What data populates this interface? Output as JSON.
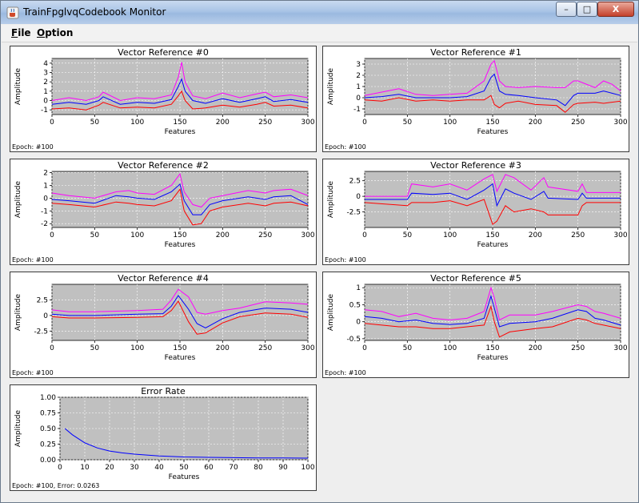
{
  "window": {
    "title": "TrainFpglvqCodebook Monitor",
    "minimize_glyph": "–",
    "maximize_glyph": "□",
    "close_glyph": "X"
  },
  "menu": {
    "items": [
      {
        "label": "File",
        "mnemonic": "F",
        "rest": "ile"
      },
      {
        "label": "Option",
        "mnemonic": "O",
        "rest": "ption"
      }
    ]
  },
  "colors": {
    "plot_bg": "#c0c0c0",
    "upper": "#ff00ff",
    "center": "#0000ff",
    "lower": "#ff0000",
    "grid": "#ffffff"
  },
  "chart_data": [
    {
      "type": "line",
      "title": "Vector Reference #0",
      "xlabel": "Features",
      "ylabel": "Amplitude",
      "footer": "Epoch: #100",
      "xlim": [
        0,
        300
      ],
      "ylim": [
        -1.5,
        4.5
      ],
      "xticks": [
        0,
        50,
        100,
        150,
        200,
        250,
        300
      ],
      "yticks": [
        -1,
        0,
        1,
        2,
        3,
        4
      ],
      "series": [
        {
          "color": "upper",
          "x": [
            0,
            20,
            40,
            55,
            60,
            80,
            100,
            120,
            140,
            148,
            152,
            156,
            165,
            180,
            200,
            220,
            240,
            250,
            260,
            280,
            300
          ],
          "y": [
            0.0,
            0.3,
            0.0,
            0.4,
            0.9,
            0.0,
            0.3,
            0.2,
            0.6,
            2.5,
            4.1,
            2.0,
            0.5,
            0.2,
            0.8,
            0.3,
            0.7,
            0.9,
            0.4,
            0.6,
            0.3
          ]
        },
        {
          "color": "center",
          "x": [
            0,
            20,
            40,
            55,
            60,
            80,
            100,
            120,
            140,
            148,
            152,
            156,
            165,
            180,
            200,
            220,
            240,
            250,
            260,
            280,
            300
          ],
          "y": [
            -0.4,
            -0.2,
            -0.4,
            0.0,
            0.4,
            -0.4,
            -0.2,
            -0.3,
            0.1,
            1.5,
            2.3,
            1.0,
            0.0,
            -0.3,
            0.2,
            -0.2,
            0.2,
            0.4,
            -0.1,
            0.1,
            -0.2
          ]
        },
        {
          "color": "lower",
          "x": [
            0,
            20,
            40,
            55,
            60,
            80,
            100,
            120,
            140,
            148,
            152,
            156,
            165,
            180,
            200,
            220,
            240,
            250,
            260,
            280,
            300
          ],
          "y": [
            -0.9,
            -0.8,
            -1.0,
            -0.5,
            -0.2,
            -0.8,
            -0.7,
            -0.8,
            -0.4,
            0.5,
            1.0,
            0.0,
            -0.9,
            -0.8,
            -0.5,
            -0.7,
            -0.4,
            -0.2,
            -0.6,
            -0.5,
            -0.8
          ]
        }
      ]
    },
    {
      "type": "line",
      "title": "Vector Reference #1",
      "xlabel": "Features",
      "ylabel": "Amplitude",
      "footer": "Epoch: #100",
      "xlim": [
        0,
        300
      ],
      "ylim": [
        -1.5,
        3.5
      ],
      "xticks": [
        0,
        50,
        100,
        150,
        200,
        250,
        300
      ],
      "yticks": [
        -1,
        0,
        1,
        2,
        3
      ],
      "series": [
        {
          "color": "upper",
          "x": [
            0,
            20,
            40,
            60,
            80,
            100,
            120,
            140,
            148,
            152,
            158,
            165,
            180,
            200,
            225,
            235,
            245,
            250,
            270,
            280,
            290,
            300
          ],
          "y": [
            0.2,
            0.5,
            0.8,
            0.3,
            0.2,
            0.3,
            0.4,
            1.5,
            3.0,
            3.3,
            1.5,
            1.0,
            0.9,
            1.0,
            0.9,
            0.9,
            1.5,
            1.5,
            0.9,
            1.5,
            1.2,
            0.6
          ]
        },
        {
          "color": "center",
          "x": [
            0,
            20,
            40,
            60,
            80,
            100,
            120,
            140,
            148,
            152,
            158,
            165,
            180,
            200,
            225,
            235,
            245,
            250,
            270,
            280,
            290,
            300
          ],
          "y": [
            0.0,
            0.1,
            0.3,
            0.0,
            0.0,
            0.0,
            0.1,
            0.6,
            1.8,
            2.1,
            0.6,
            0.3,
            0.2,
            0.0,
            -0.2,
            -0.7,
            0.2,
            0.4,
            0.4,
            0.6,
            0.4,
            0.2
          ]
        },
        {
          "color": "lower",
          "x": [
            0,
            20,
            40,
            60,
            80,
            100,
            120,
            140,
            148,
            152,
            158,
            165,
            180,
            200,
            225,
            235,
            245,
            250,
            270,
            280,
            290,
            300
          ],
          "y": [
            -0.2,
            -0.3,
            0.0,
            -0.3,
            -0.2,
            -0.3,
            -0.2,
            -0.2,
            0.2,
            -0.6,
            -0.9,
            -0.5,
            -0.3,
            -0.6,
            -0.7,
            -1.3,
            -0.6,
            -0.5,
            -0.4,
            -0.5,
            -0.4,
            -0.3
          ]
        }
      ]
    },
    {
      "type": "line",
      "title": "Vector Reference #2",
      "xlabel": "Features",
      "ylabel": "Amplitude",
      "footer": "Epoch: #100",
      "xlim": [
        0,
        300
      ],
      "ylim": [
        -2.3,
        2.1
      ],
      "xticks": [
        0,
        50,
        100,
        150,
        200,
        250,
        300
      ],
      "yticks": [
        -2,
        -1,
        0,
        1,
        2
      ],
      "series": [
        {
          "color": "upper",
          "x": [
            0,
            20,
            50,
            75,
            90,
            100,
            120,
            140,
            150,
            155,
            165,
            175,
            185,
            200,
            230,
            250,
            260,
            280,
            300
          ],
          "y": [
            0.4,
            0.2,
            0.0,
            0.5,
            0.6,
            0.4,
            0.3,
            1.0,
            1.9,
            0.5,
            -0.5,
            -0.7,
            0.0,
            0.2,
            0.6,
            0.4,
            0.6,
            0.7,
            0.2
          ]
        },
        {
          "color": "center",
          "x": [
            0,
            20,
            50,
            75,
            90,
            100,
            120,
            140,
            150,
            155,
            165,
            175,
            185,
            200,
            230,
            250,
            260,
            280,
            300
          ],
          "y": [
            -0.1,
            -0.2,
            -0.4,
            0.2,
            0.1,
            0.0,
            -0.1,
            0.5,
            1.1,
            -0.2,
            -1.3,
            -1.3,
            -0.5,
            -0.2,
            0.1,
            -0.1,
            0.1,
            0.2,
            -0.5
          ]
        },
        {
          "color": "lower",
          "x": [
            0,
            20,
            50,
            75,
            90,
            100,
            120,
            140,
            150,
            155,
            165,
            175,
            185,
            200,
            230,
            250,
            260,
            280,
            300
          ],
          "y": [
            -0.4,
            -0.5,
            -0.7,
            -0.3,
            -0.4,
            -0.5,
            -0.6,
            -0.2,
            0.7,
            -1.0,
            -2.1,
            -2.0,
            -1.0,
            -0.7,
            -0.4,
            -0.6,
            -0.4,
            -0.3,
            -0.6
          ]
        }
      ]
    },
    {
      "type": "line",
      "title": "Vector Reference #3",
      "xlabel": "Features",
      "ylabel": "Amplitude",
      "footer": "Epoch: #100",
      "xlim": [
        0,
        300
      ],
      "ylim": [
        -5,
        4
      ],
      "xticks": [
        0,
        50,
        100,
        150,
        200,
        250,
        300
      ],
      "yticks": [
        -2.5,
        0.0,
        2.5
      ],
      "series": [
        {
          "color": "upper",
          "x": [
            0,
            50,
            55,
            80,
            100,
            120,
            140,
            150,
            155,
            165,
            175,
            195,
            210,
            215,
            250,
            255,
            260,
            300
          ],
          "y": [
            0.0,
            0.0,
            2.0,
            1.5,
            2.0,
            1.0,
            2.8,
            3.5,
            0.8,
            3.5,
            3.0,
            1.0,
            3.0,
            1.5,
            0.8,
            2.0,
            0.6,
            0.6
          ]
        },
        {
          "color": "center",
          "x": [
            0,
            50,
            55,
            80,
            100,
            120,
            140,
            150,
            155,
            165,
            175,
            195,
            210,
            215,
            250,
            255,
            260,
            300
          ],
          "y": [
            -0.5,
            -0.5,
            0.5,
            0.3,
            0.5,
            -0.5,
            1.0,
            2.0,
            -1.5,
            1.2,
            0.5,
            -0.5,
            0.8,
            -0.3,
            -0.5,
            0.5,
            -0.3,
            -0.3
          ]
        },
        {
          "color": "lower",
          "x": [
            0,
            50,
            55,
            80,
            100,
            120,
            140,
            150,
            155,
            165,
            175,
            195,
            210,
            215,
            250,
            255,
            260,
            300
          ],
          "y": [
            -1.0,
            -1.5,
            -1.0,
            -1.0,
            -0.7,
            -1.5,
            -0.5,
            -4.5,
            -4.0,
            -1.5,
            -2.5,
            -2.0,
            -2.5,
            -3.0,
            -3.0,
            -1.5,
            -1.0,
            -1.0
          ]
        }
      ]
    },
    {
      "type": "line",
      "title": "Vector Reference #4",
      "xlabel": "Features",
      "ylabel": "Amplitude",
      "footer": "Epoch: #100",
      "xlim": [
        0,
        300
      ],
      "ylim": [
        -4,
        5
      ],
      "xticks": [
        0,
        50,
        100,
        150,
        200,
        250,
        300
      ],
      "yticks": [
        -2.5,
        0.0,
        2.5
      ],
      "series": [
        {
          "color": "upper",
          "x": [
            0,
            20,
            50,
            100,
            130,
            140,
            148,
            160,
            170,
            180,
            200,
            220,
            250,
            280,
            300
          ],
          "y": [
            0.9,
            0.6,
            0.6,
            0.8,
            1.0,
            2.5,
            4.2,
            3.0,
            0.5,
            0.2,
            0.8,
            1.2,
            2.2,
            2.0,
            1.8
          ]
        },
        {
          "color": "center",
          "x": [
            0,
            20,
            50,
            100,
            130,
            140,
            148,
            160,
            170,
            180,
            200,
            220,
            250,
            280,
            300
          ],
          "y": [
            0.2,
            0.0,
            0.0,
            0.2,
            0.3,
            1.5,
            3.2,
            1.0,
            -1.3,
            -2.0,
            -0.5,
            0.5,
            1.2,
            1.0,
            0.5
          ]
        },
        {
          "color": "lower",
          "x": [
            0,
            20,
            50,
            100,
            130,
            140,
            148,
            160,
            170,
            180,
            200,
            220,
            250,
            280,
            300
          ],
          "y": [
            -0.2,
            -0.4,
            -0.4,
            -0.3,
            -0.2,
            0.8,
            2.3,
            -1.0,
            -3.0,
            -2.8,
            -1.2,
            -0.2,
            0.4,
            0.2,
            -0.3
          ]
        }
      ]
    },
    {
      "type": "line",
      "title": "Vector Reference #5",
      "xlabel": "Features",
      "ylabel": "Amplitude",
      "footer": "Epoch: #100",
      "xlim": [
        0,
        300
      ],
      "ylim": [
        -0.55,
        1.1
      ],
      "xticks": [
        0,
        50,
        100,
        150,
        200,
        250,
        300
      ],
      "yticks": [
        -0.5,
        0.0,
        0.5,
        1.0
      ],
      "series": [
        {
          "color": "upper",
          "x": [
            0,
            20,
            40,
            60,
            80,
            100,
            120,
            140,
            148,
            152,
            158,
            170,
            200,
            220,
            250,
            260,
            270,
            280,
            300
          ],
          "y": [
            0.35,
            0.3,
            0.15,
            0.25,
            0.1,
            0.05,
            0.1,
            0.3,
            1.0,
            0.7,
            0.05,
            0.2,
            0.2,
            0.3,
            0.5,
            0.45,
            0.3,
            0.25,
            0.1
          ]
        },
        {
          "color": "center",
          "x": [
            0,
            20,
            40,
            60,
            80,
            100,
            120,
            140,
            148,
            152,
            158,
            170,
            200,
            220,
            250,
            260,
            270,
            280,
            300
          ],
          "y": [
            0.15,
            0.1,
            0.0,
            0.05,
            -0.05,
            -0.08,
            -0.05,
            0.1,
            0.75,
            0.4,
            -0.15,
            -0.05,
            0.0,
            0.1,
            0.35,
            0.3,
            0.1,
            0.05,
            -0.1
          ]
        },
        {
          "color": "lower",
          "x": [
            0,
            20,
            40,
            60,
            80,
            100,
            120,
            140,
            148,
            152,
            158,
            170,
            200,
            220,
            250,
            260,
            270,
            280,
            300
          ],
          "y": [
            -0.05,
            -0.1,
            -0.15,
            -0.15,
            -0.2,
            -0.2,
            -0.15,
            -0.1,
            0.45,
            0.0,
            -0.45,
            -0.3,
            -0.2,
            -0.15,
            0.1,
            0.05,
            -0.05,
            -0.1,
            -0.2
          ]
        }
      ]
    },
    {
      "type": "line",
      "title": "Error Rate",
      "xlabel": "Features",
      "ylabel": "Amplitude",
      "footer": "Epoch: #100,  Error:  0.0263",
      "xlim": [
        0,
        100
      ],
      "ylim": [
        0,
        1.0
      ],
      "xticks": [
        0,
        10,
        20,
        30,
        40,
        50,
        60,
        70,
        80,
        90,
        100
      ],
      "yticks": [
        0.0,
        0.25,
        0.5,
        0.75,
        1.0
      ],
      "ytick_labels": [
        "0.00",
        "0.25",
        "0.50",
        "0.75",
        "1.00"
      ],
      "series": [
        {
          "color": "center",
          "x": [
            2,
            5,
            10,
            15,
            20,
            25,
            30,
            40,
            50,
            60,
            70,
            80,
            90,
            100
          ],
          "y": [
            0.5,
            0.4,
            0.27,
            0.19,
            0.14,
            0.11,
            0.09,
            0.06,
            0.045,
            0.038,
            0.033,
            0.03,
            0.028,
            0.026
          ]
        }
      ]
    }
  ]
}
